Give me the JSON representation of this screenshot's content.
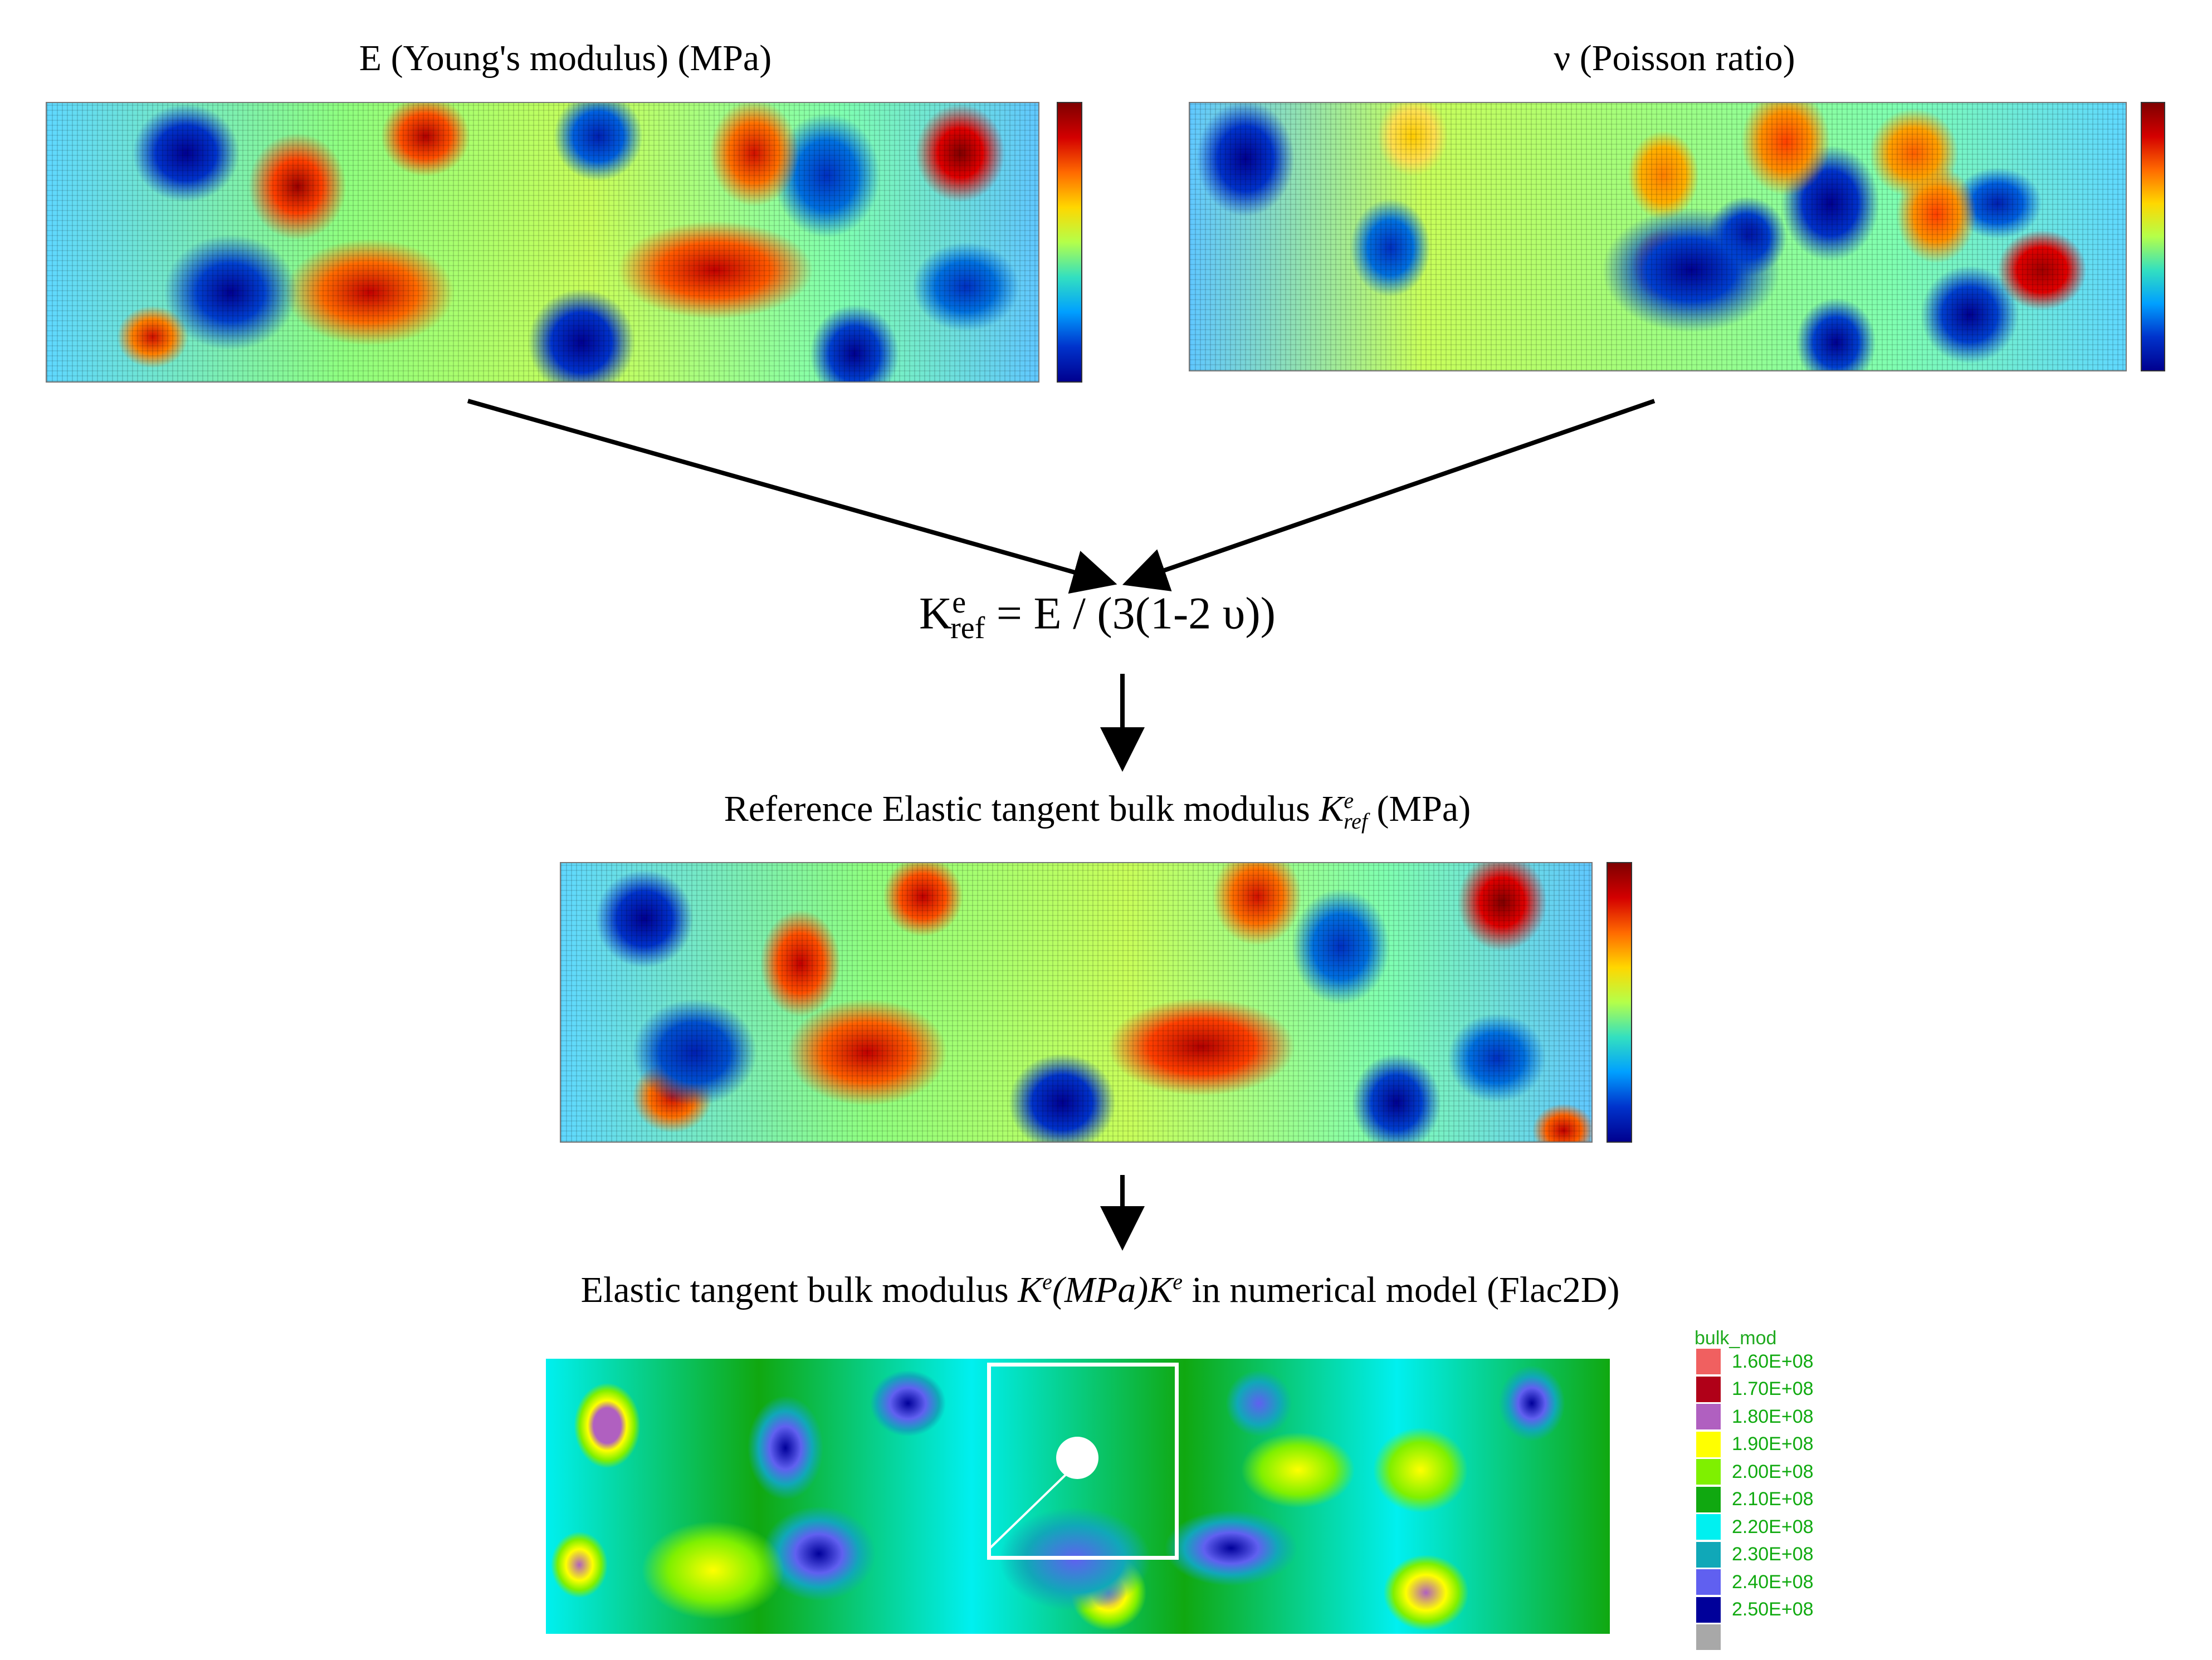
{
  "panels": {
    "youngs": {
      "title": "E (Young's modulus) (MPa)"
    },
    "poisson": {
      "title": "ν (Poisson ratio)"
    },
    "reference": {
      "title_prefix": "Reference Elastic tangent bulk modulus ",
      "title_symbol": "K",
      "title_sup": "e",
      "title_sub": "ref",
      "title_suffix": " (MPa)"
    },
    "numerical": {
      "title_prefix": "Elastic tangent bulk modulus ",
      "title_symbol1": "K",
      "title_sup1": "e",
      "title_mid": "(MPa)",
      "title_symbol2": "K",
      "title_sup2": "e",
      "title_suffix": " in numerical model (Flac2D)"
    }
  },
  "formula": {
    "lhs_symbol": "K",
    "lhs_sup": "e",
    "lhs_sub": "ref",
    "rhs": " = E / (3(1-2 υ))"
  },
  "legend": {
    "title": "bulk_mod",
    "items": [
      {
        "label": "1.60E+08",
        "color": "#f06060"
      },
      {
        "label": "1.70E+08",
        "color": "#b00018"
      },
      {
        "label": "1.80E+08",
        "color": "#b060c0"
      },
      {
        "label": "1.90E+08",
        "color": "#ffff00"
      },
      {
        "label": "2.00E+08",
        "color": "#7ff000"
      },
      {
        "label": "2.10E+08",
        "color": "#10a810"
      },
      {
        "label": "2.20E+08",
        "color": "#00f0f0"
      },
      {
        "label": "2.30E+08",
        "color": "#10a8b8"
      },
      {
        "label": "2.40E+08",
        "color": "#6060f0"
      },
      {
        "label": "2.50E+08",
        "color": "#00009a"
      },
      {
        "label": "",
        "color": "#a8a8a8"
      }
    ]
  },
  "colors": {
    "heat_low": "#00008f",
    "heat_mid": "#7fff7f",
    "heat_high": "#7f0000",
    "arrow": "#000000",
    "tunnel_box": "#ffffff"
  }
}
